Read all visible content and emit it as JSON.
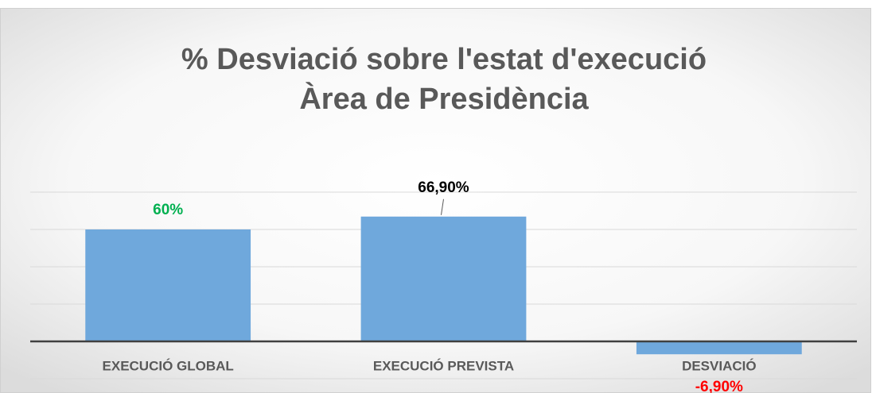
{
  "chart_data": {
    "type": "bar",
    "title": "% Desviació sobre l'estat d'execució",
    "subtitle": "Àrea de Presidència",
    "categories": [
      "EXECUCIÓ GLOBAL",
      "EXECUCIÓ PREVISTA",
      "DESVIACIÓ"
    ],
    "values": [
      60,
      66.9,
      -6.9
    ],
    "value_labels": [
      "60%",
      "66,90%",
      "-6,90%"
    ],
    "value_label_colors": [
      "#00b050",
      "#000000",
      "#ff0000"
    ],
    "color": "#6fa8dc",
    "ylim": [
      -20,
      80
    ],
    "yticks": [
      -20,
      0,
      20,
      40,
      60,
      80
    ],
    "grid": true
  }
}
